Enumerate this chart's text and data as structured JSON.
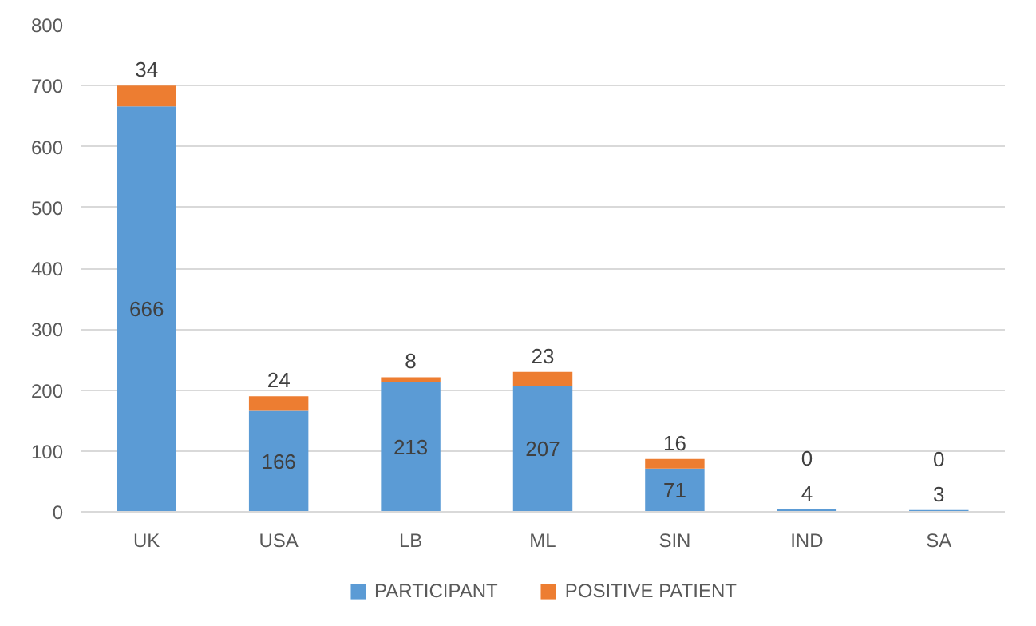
{
  "chart_data": {
    "type": "bar",
    "stacked": true,
    "categories": [
      "UK",
      "USA",
      "LB",
      "ML",
      "SIN",
      "IND",
      "SA"
    ],
    "series": [
      {
        "name": "PARTICIPANT",
        "color": "#5b9bd5",
        "values": [
          666,
          166,
          213,
          207,
          71,
          4,
          3
        ]
      },
      {
        "name": "POSITIVE PATIENT",
        "color": "#ed7d31",
        "values": [
          34,
          24,
          8,
          23,
          16,
          0,
          0
        ]
      }
    ],
    "ylim": [
      0,
      800
    ],
    "yticks": [
      0,
      100,
      200,
      300,
      400,
      500,
      600,
      700,
      800
    ],
    "grid": "y",
    "legend": "bottom",
    "data_labels": true
  }
}
